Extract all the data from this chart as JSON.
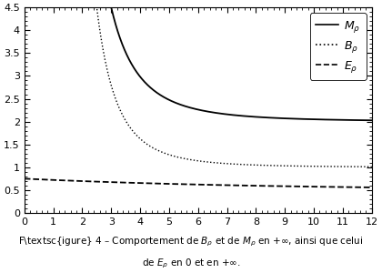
{
  "xlim": [
    0,
    12
  ],
  "ylim": [
    0,
    4.5
  ],
  "xticks": [
    0,
    1,
    2,
    3,
    4,
    5,
    6,
    7,
    8,
    9,
    10,
    11,
    12
  ],
  "yticks": [
    0,
    0.5,
    1.0,
    1.5,
    2.0,
    2.5,
    3.0,
    3.5,
    4.0,
    4.5
  ],
  "ytick_labels": [
    "0",
    "0.5",
    "1",
    "1.5",
    "2",
    "2.5",
    "3",
    "3.5",
    "4",
    "4.5"
  ],
  "legend_entries": [
    "$M_{\\rho}$",
    "$B_{\\rho}$",
    "$E_{\\rho}$"
  ],
  "line_color": "#000000",
  "M_asymptote": 2.0,
  "B_asymptote": 1.0,
  "E_start": 0.75,
  "E_asymptote": 0.5
}
